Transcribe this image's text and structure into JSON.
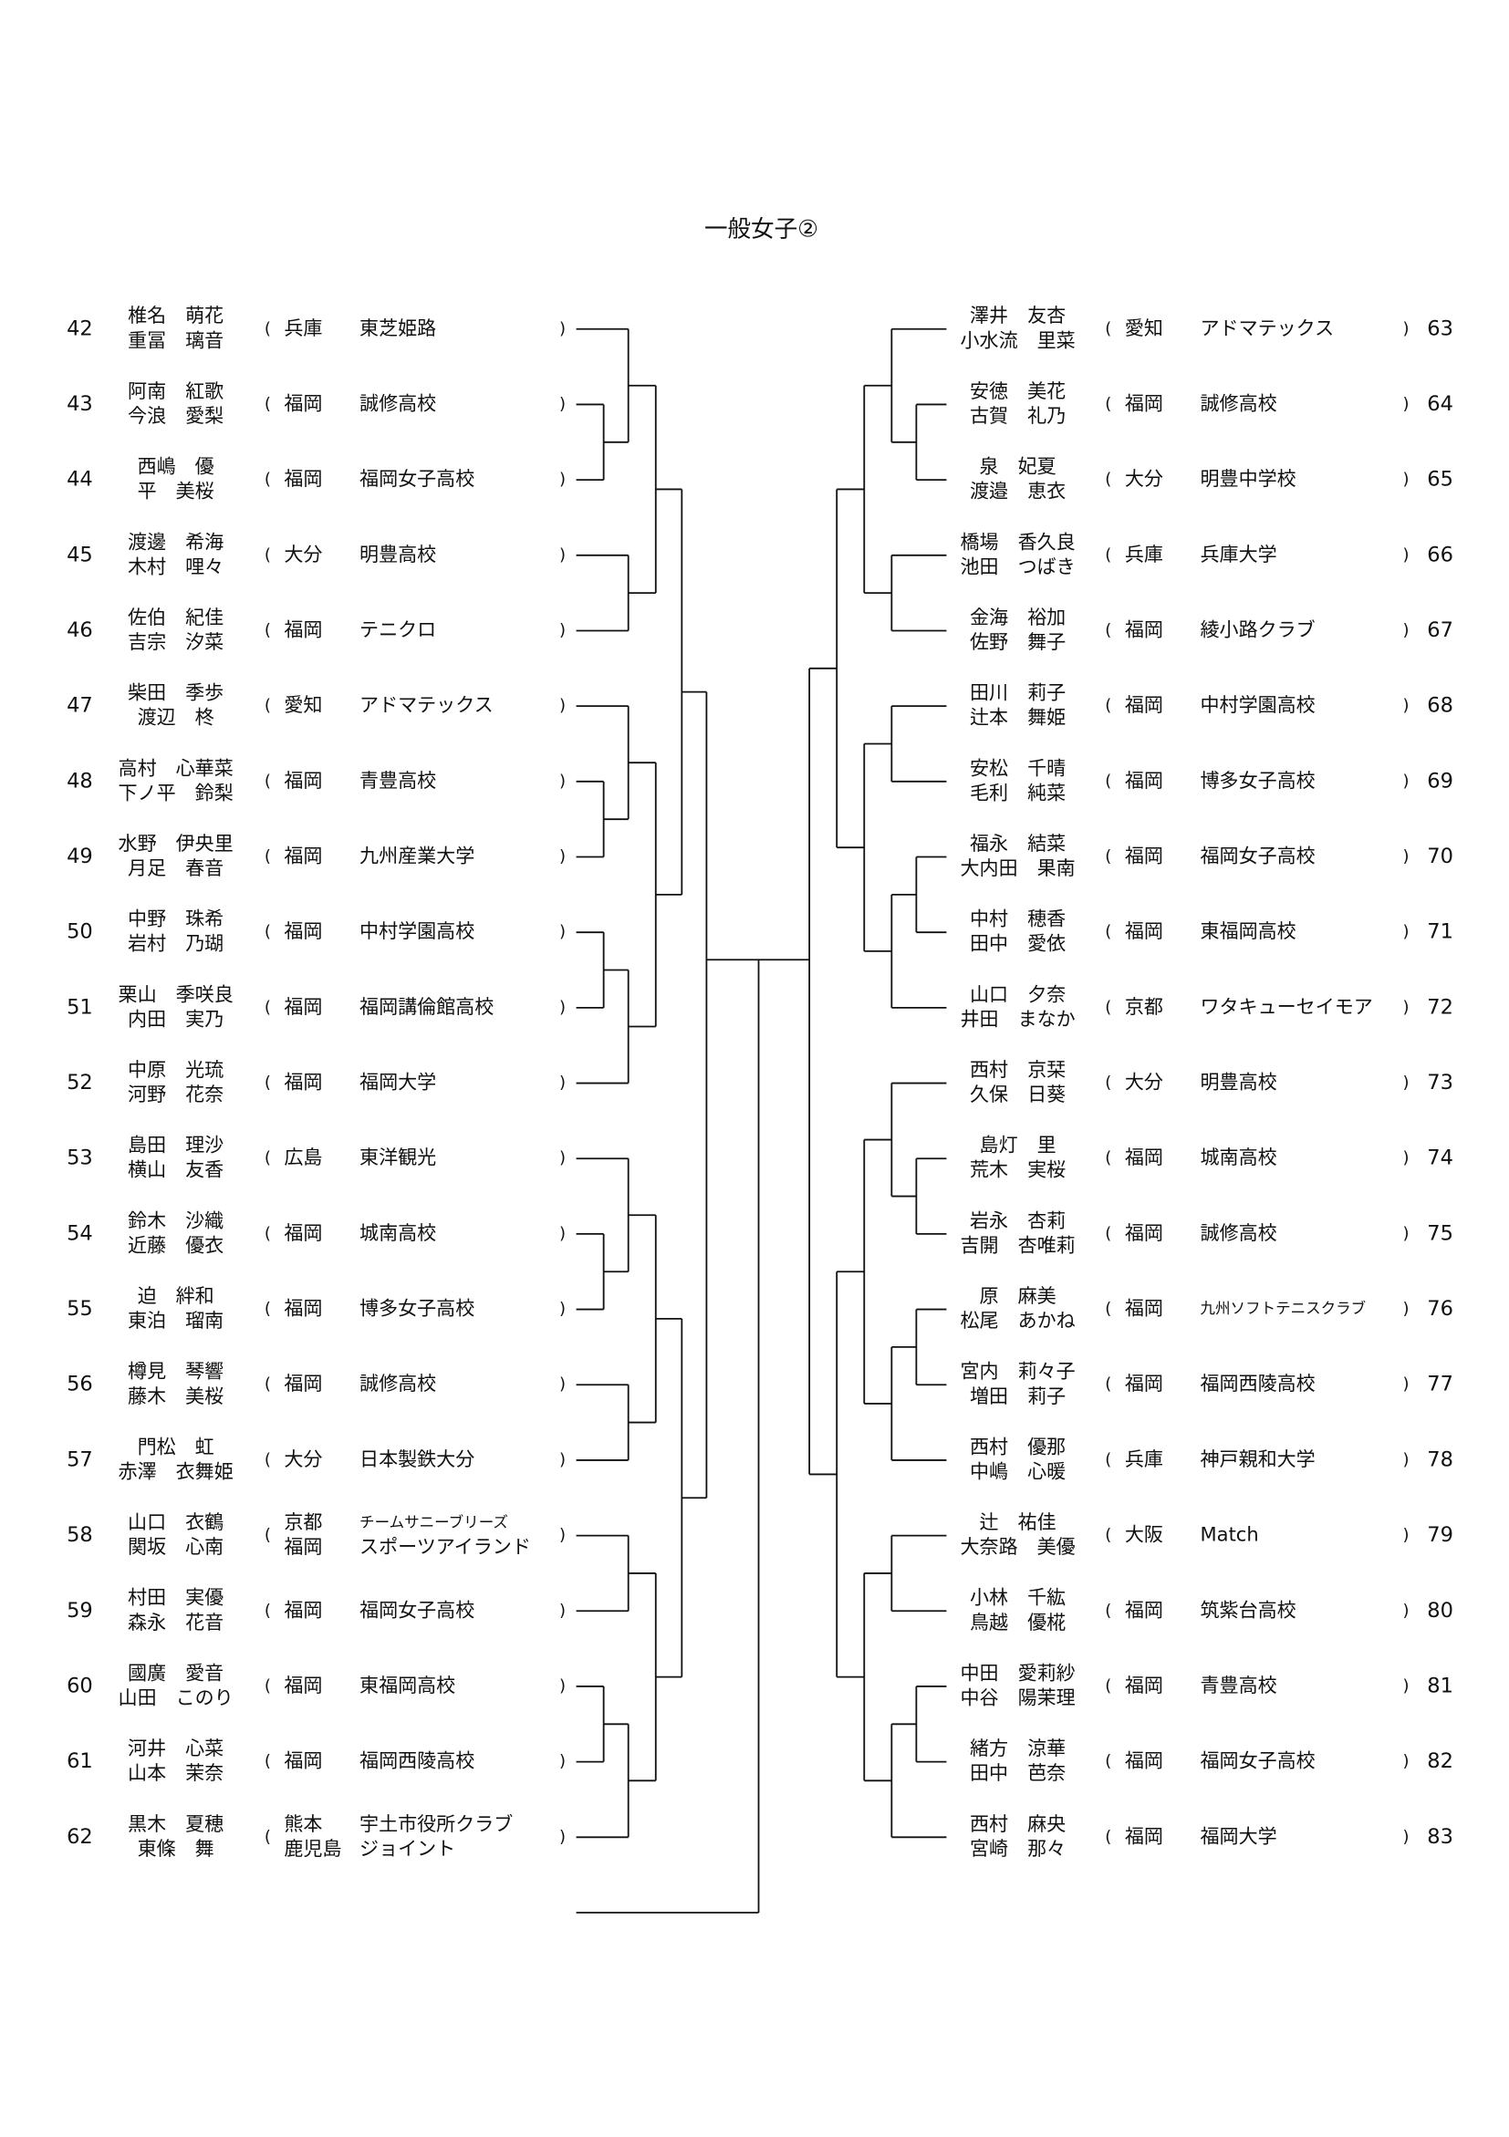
{
  "title": "一般女子②",
  "brackets": {
    "open": "(",
    "close": ")"
  },
  "left": [
    {
      "no": 42,
      "players": [
        "椎名　萌花",
        "重冨　璃音"
      ],
      "pref": [
        "兵庫"
      ],
      "team": [
        "東芝姫路"
      ]
    },
    {
      "no": 43,
      "players": [
        "阿南　紅歌",
        "今浪　愛梨"
      ],
      "pref": [
        "福岡"
      ],
      "team": [
        "誠修高校"
      ]
    },
    {
      "no": 44,
      "players": [
        "西嶋　優",
        "平　美桜"
      ],
      "pref": [
        "福岡"
      ],
      "team": [
        "福岡女子高校"
      ]
    },
    {
      "no": 45,
      "players": [
        "渡邊　希海",
        "木村　哩々"
      ],
      "pref": [
        "大分"
      ],
      "team": [
        "明豊高校"
      ]
    },
    {
      "no": 46,
      "players": [
        "佐伯　紀佳",
        "吉宗　汐菜"
      ],
      "pref": [
        "福岡"
      ],
      "team": [
        "テニクロ"
      ]
    },
    {
      "no": 47,
      "players": [
        "柴田　季歩",
        "渡辺　柊"
      ],
      "pref": [
        "愛知"
      ],
      "team": [
        "アドマテックス"
      ]
    },
    {
      "no": 48,
      "players": [
        "高村　心華菜",
        "下ノ平　鈴梨"
      ],
      "pref": [
        "福岡"
      ],
      "team": [
        "青豊高校"
      ]
    },
    {
      "no": 49,
      "players": [
        "水野　伊央里",
        "月足　春音"
      ],
      "pref": [
        "福岡"
      ],
      "team": [
        "九州産業大学"
      ]
    },
    {
      "no": 50,
      "players": [
        "中野　珠希",
        "岩村　乃瑚"
      ],
      "pref": [
        "福岡"
      ],
      "team": [
        "中村学園高校"
      ]
    },
    {
      "no": 51,
      "players": [
        "栗山　季咲良",
        "内田　実乃"
      ],
      "pref": [
        "福岡"
      ],
      "team": [
        "福岡講倫館高校"
      ]
    },
    {
      "no": 52,
      "players": [
        "中原　光琉",
        "河野　花奈"
      ],
      "pref": [
        "福岡"
      ],
      "team": [
        "福岡大学"
      ]
    },
    {
      "no": 53,
      "players": [
        "島田　理沙",
        "横山　友香"
      ],
      "pref": [
        "広島"
      ],
      "team": [
        "東洋観光"
      ]
    },
    {
      "no": 54,
      "players": [
        "鈴木　沙織",
        "近藤　優衣"
      ],
      "pref": [
        "福岡"
      ],
      "team": [
        "城南高校"
      ]
    },
    {
      "no": 55,
      "players": [
        "迫　絆和",
        "東泊　瑠南"
      ],
      "pref": [
        "福岡"
      ],
      "team": [
        "博多女子高校"
      ]
    },
    {
      "no": 56,
      "players": [
        "樽見　琴響",
        "藤木　美桜"
      ],
      "pref": [
        "福岡"
      ],
      "team": [
        "誠修高校"
      ]
    },
    {
      "no": 57,
      "players": [
        "門松　虹",
        "赤澤　衣舞姫"
      ],
      "pref": [
        "大分"
      ],
      "team": [
        "日本製鉄大分"
      ]
    },
    {
      "no": 58,
      "players": [
        "山口　衣鶴",
        "関坂　心南"
      ],
      "pref": [
        "京都",
        "福岡"
      ],
      "team": [
        "チームサニーブリーズ",
        "スポーツアイランド"
      ]
    },
    {
      "no": 59,
      "players": [
        "村田　実優",
        "森永　花音"
      ],
      "pref": [
        "福岡"
      ],
      "team": [
        "福岡女子高校"
      ]
    },
    {
      "no": 60,
      "players": [
        "國廣　愛音",
        "山田　このり"
      ],
      "pref": [
        "福岡"
      ],
      "team": [
        "東福岡高校"
      ]
    },
    {
      "no": 61,
      "players": [
        "河井　心菜",
        "山本　茉奈"
      ],
      "pref": [
        "福岡"
      ],
      "team": [
        "福岡西陵高校"
      ]
    },
    {
      "no": 62,
      "players": [
        "黒木　夏穂",
        "東條　舞"
      ],
      "pref": [
        "熊本",
        "鹿児島"
      ],
      "team": [
        "宇土市役所クラブ",
        "ジョイント"
      ]
    }
  ],
  "right": [
    {
      "no": 63,
      "players": [
        "澤井　友杏",
        "小水流　里菜"
      ],
      "pref": [
        "愛知"
      ],
      "team": [
        "アドマテックス"
      ]
    },
    {
      "no": 64,
      "players": [
        "安徳　美花",
        "古賀　礼乃"
      ],
      "pref": [
        "福岡"
      ],
      "team": [
        "誠修高校"
      ]
    },
    {
      "no": 65,
      "players": [
        "泉　妃夏",
        "渡邉　恵衣"
      ],
      "pref": [
        "大分"
      ],
      "team": [
        "明豊中学校"
      ]
    },
    {
      "no": 66,
      "players": [
        "橋場　香久良",
        "池田　つばき"
      ],
      "pref": [
        "兵庫"
      ],
      "team": [
        "兵庫大学"
      ]
    },
    {
      "no": 67,
      "players": [
        "金海　裕加",
        "佐野　舞子"
      ],
      "pref": [
        "福岡"
      ],
      "team": [
        "綾小路クラブ"
      ]
    },
    {
      "no": 68,
      "players": [
        "田川　莉子",
        "辻本　舞姫"
      ],
      "pref": [
        "福岡"
      ],
      "team": [
        "中村学園高校"
      ]
    },
    {
      "no": 69,
      "players": [
        "安松　千晴",
        "毛利　純菜"
      ],
      "pref": [
        "福岡"
      ],
      "team": [
        "博多女子高校"
      ]
    },
    {
      "no": 70,
      "players": [
        "福永　結菜",
        "大内田　果南"
      ],
      "pref": [
        "福岡"
      ],
      "team": [
        "福岡女子高校"
      ]
    },
    {
      "no": 71,
      "players": [
        "中村　穂香",
        "田中　愛依"
      ],
      "pref": [
        "福岡"
      ],
      "team": [
        "東福岡高校"
      ]
    },
    {
      "no": 72,
      "players": [
        "山口　夕奈",
        "井田　まなか"
      ],
      "pref": [
        "京都"
      ],
      "team": [
        "ワタキューセイモア"
      ]
    },
    {
      "no": 73,
      "players": [
        "西村　京栞",
        "久保　日葵"
      ],
      "pref": [
        "大分"
      ],
      "team": [
        "明豊高校"
      ]
    },
    {
      "no": 74,
      "players": [
        "島灯　里",
        "荒木　実桜"
      ],
      "pref": [
        "福岡"
      ],
      "team": [
        "城南高校"
      ]
    },
    {
      "no": 75,
      "players": [
        "岩永　杏莉",
        "吉開　杏唯莉"
      ],
      "pref": [
        "福岡"
      ],
      "team": [
        "誠修高校"
      ]
    },
    {
      "no": 76,
      "players": [
        "原　麻美",
        "松尾　あかね"
      ],
      "pref": [
        "福岡"
      ],
      "team": [
        "九州ソフトテニスクラブ"
      ]
    },
    {
      "no": 77,
      "players": [
        "宮内　莉々子",
        "増田　莉子"
      ],
      "pref": [
        "福岡"
      ],
      "team": [
        "福岡西陵高校"
      ]
    },
    {
      "no": 78,
      "players": [
        "西村　優那",
        "中嶋　心暖"
      ],
      "pref": [
        "兵庫"
      ],
      "team": [
        "神戸親和大学"
      ]
    },
    {
      "no": 79,
      "players": [
        "辻　祐佳",
        "大奈路　美優"
      ],
      "pref": [
        "大阪"
      ],
      "team": [
        "Match"
      ]
    },
    {
      "no": 80,
      "players": [
        "小林　千紘",
        "鳥越　優椛"
      ],
      "pref": [
        "福岡"
      ],
      "team": [
        "筑紫台高校"
      ]
    },
    {
      "no": 81,
      "players": [
        "中田　愛莉紗",
        "中谷　陽茉理"
      ],
      "pref": [
        "福岡"
      ],
      "team": [
        "青豊高校"
      ]
    },
    {
      "no": 82,
      "players": [
        "緒方　涼華",
        "田中　芭奈"
      ],
      "pref": [
        "福岡"
      ],
      "team": [
        "福岡女子高校"
      ]
    },
    {
      "no": 83,
      "players": [
        "西村　麻央",
        "宮崎　那々"
      ],
      "pref": [
        "福岡"
      ],
      "team": [
        "福岡大学"
      ]
    }
  ]
}
